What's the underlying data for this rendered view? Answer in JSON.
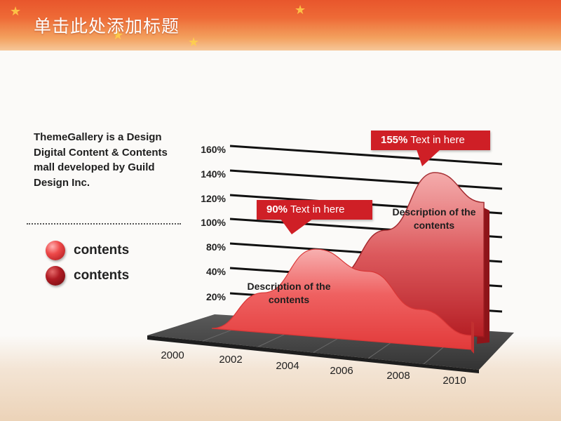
{
  "slide": {
    "title": "单击此处添加标题",
    "company_text": "ThemeGallery is a Design Digital Content & Contents mall developed by Guild Design Inc."
  },
  "legend": {
    "items": [
      {
        "label": "contents",
        "style": "light-red-ball"
      },
      {
        "label": "contents",
        "style": "dark-red-ball"
      }
    ]
  },
  "callouts": [
    {
      "value": "90%",
      "text": "Text in here"
    },
    {
      "value": "155%",
      "text": "Text in here"
    }
  ],
  "descriptions": [
    "Description of the contents",
    "Description of the contents"
  ],
  "colors": {
    "accent": "#cf1f26",
    "front_series": "#ee4c4c",
    "back_series": "#c0262c",
    "floor": "#4a4a4a",
    "banner": "#ee6a36"
  },
  "chart_data": {
    "type": "area",
    "style": "3d",
    "categories": [
      "2000",
      "2002",
      "2004",
      "2006",
      "2008",
      "2010"
    ],
    "y_ticks": [
      "20%",
      "40%",
      "80%",
      "100%",
      "120%",
      "140%",
      "160%"
    ],
    "series": [
      {
        "values": [
          0,
          40,
          88,
          70,
          36,
          14
        ]
      },
      {
        "values": [
          0,
          20,
          45,
          92,
          150,
          126
        ]
      }
    ],
    "annotations": [
      {
        "value": "90%",
        "text": "Text in here"
      },
      {
        "value": "155%",
        "text": "Text in here"
      }
    ],
    "grid": true,
    "legend": "left"
  }
}
